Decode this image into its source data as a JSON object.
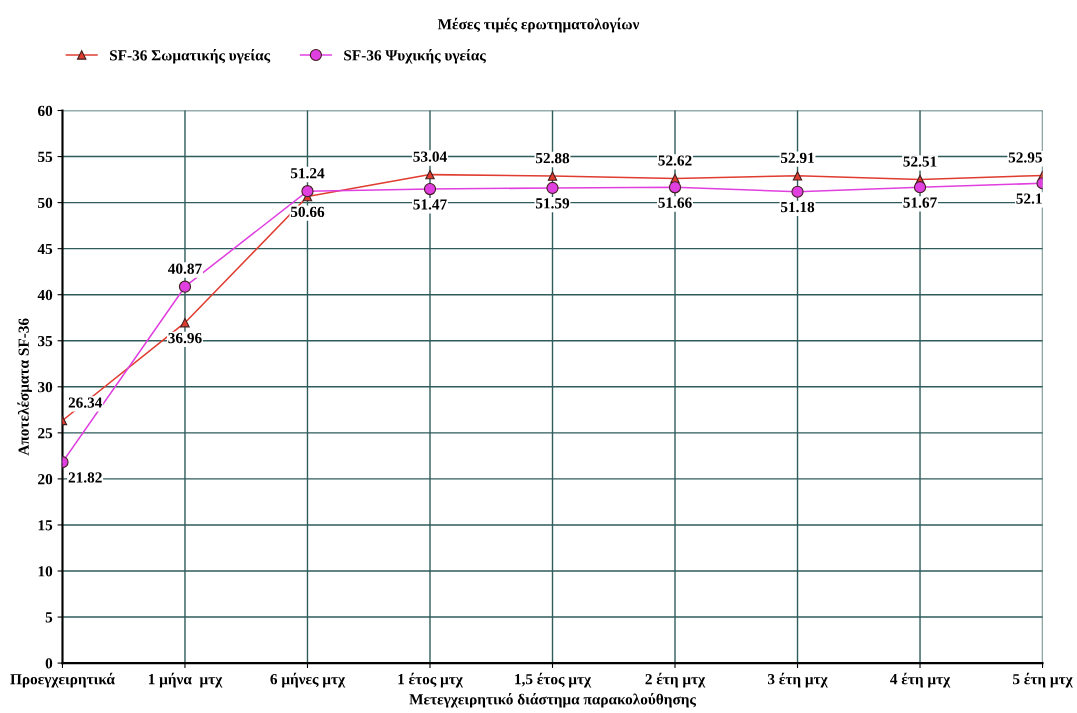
{
  "chart_data": {
    "type": "line",
    "title": "Μέσες τιμές ερωτηματολογίων",
    "xlabel": "Μετεγχειρητικό διάστημα παρακολούθησης",
    "ylabel": "Αποτελέσματα SF-36",
    "categories": [
      "Προεγχειρητικά",
      "1 μήνα  μτχ",
      "6 μήνες μτχ",
      "1 έτος μτχ",
      "1,5 έτος μτχ",
      "2 έτη μτχ",
      "3 έτη μτχ",
      "4 έτη μτχ",
      "5 έτη μτχ"
    ],
    "series": [
      {
        "name": "SF-36 Σωματικής υγείας",
        "color": "#e03c30",
        "marker": "triangle",
        "values": [
          26.34,
          36.96,
          50.66,
          53.04,
          52.88,
          52.62,
          52.91,
          52.51,
          52.95
        ]
      },
      {
        "name": "SF-36 Ψυχικής υγείας",
        "color": "#e040e0",
        "marker": "circle",
        "values": [
          21.82,
          40.87,
          51.24,
          51.47,
          51.59,
          51.66,
          51.18,
          51.67,
          52.1
        ]
      }
    ],
    "ylim": [
      0,
      60
    ],
    "yticks": [
      0,
      5,
      10,
      15,
      20,
      25,
      30,
      35,
      40,
      45,
      50,
      55,
      60
    ],
    "grid": true,
    "legend": "top left",
    "data_labels": true,
    "line_style": "solid"
  }
}
